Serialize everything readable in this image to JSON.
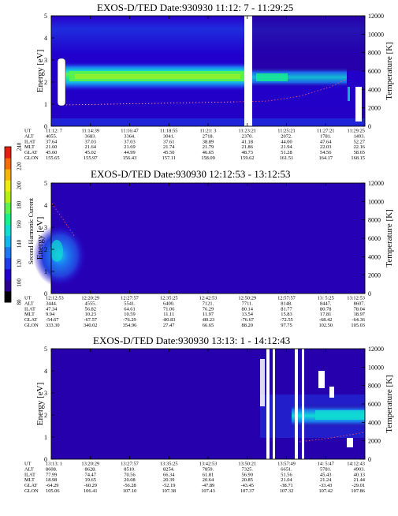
{
  "colors": {
    "scale": [
      "#000000",
      "#2a0090",
      "#2400c8",
      "#1e3ce6",
      "#1c78f0",
      "#14b4ee",
      "#10dcd2",
      "#18f08c",
      "#5cf24c",
      "#b4f014",
      "#ecec14",
      "#f8b40c",
      "#f46c08",
      "#e62010"
    ]
  },
  "colorbar": {
    "label": "Second Harmonic Current",
    "ticks": [
      "80",
      "100",
      "120",
      "140",
      "160",
      "180",
      "200",
      "220",
      "240"
    ]
  },
  "chart_data": [
    {
      "type": "heatmap",
      "title": "EXOS-D/TED   Date:930930  11:12: 7 - 11:29:25",
      "ylabel": "Energy [eV]",
      "ylabel_right": "Temperature [K]",
      "ylim": [
        0,
        5
      ],
      "y_ticks": [
        "0",
        "1",
        "2",
        "3",
        "4",
        "5"
      ],
      "ylim_right": [
        0,
        12000
      ],
      "y_ticks_right": [
        "0",
        "2000",
        "4000",
        "6000",
        "8000",
        "10000",
        "12000"
      ],
      "row_labels": [
        "UT",
        "ALT",
        "ILAT",
        "MLT",
        "GLAT",
        "GLON"
      ],
      "columns": [
        [
          "11:12: 7",
          "4055.",
          "37.64",
          "21.60",
          "45.60",
          "155.65"
        ],
        [
          "11:14:39",
          "3683.",
          "37.03",
          "21.64",
          "45.02",
          "155.97"
        ],
        [
          "11:16:47",
          "3364.",
          "37.03",
          "21.69",
          "44.99",
          "156.43"
        ],
        [
          "11:18:55",
          "3041.",
          "37.61",
          "21.74",
          "45.50",
          "157.11"
        ],
        [
          "11:21: 3",
          "2718.",
          "38.89",
          "21.79",
          "46.65",
          "158.09"
        ],
        [
          "11:23:21",
          "2370.",
          "41.18",
          "21.86",
          "48.73",
          "159.62"
        ],
        [
          "11:25:21",
          "2072.",
          "44.00",
          "21.94",
          "51.28",
          "161.51"
        ],
        [
          "11:27:21",
          "1781.",
          "47.64",
          "22.03",
          "54.56",
          "164.17"
        ],
        [
          "11:29:25",
          "1493.",
          "52.27",
          "22.16",
          "58.65",
          "168.15"
        ]
      ]
    },
    {
      "type": "heatmap",
      "title": "EXOS-D/TED   Date:930930  12:12:53 - 13:12:53",
      "ylabel": "Energy [eV]",
      "ylabel_right": "Temperature [K]",
      "ylim": [
        0,
        5
      ],
      "y_ticks": [
        "0",
        "1",
        "2",
        "3",
        "4",
        "5"
      ],
      "ylim_right": [
        0,
        12000
      ],
      "y_ticks_right": [
        "0",
        "2000",
        "4000",
        "6000",
        "8000",
        "10000",
        "12000"
      ],
      "row_labels": [
        "UT",
        "ALT",
        "ILAT",
        "MLT",
        "GLAT",
        "GLON"
      ],
      "columns": [
        [
          "12:12:53",
          "3444.",
          "47.34",
          "9.94",
          "-54.67",
          "333.30"
        ],
        [
          "12:20:29",
          "4555.",
          "56.82",
          "10.23",
          "-67.57",
          "340.02"
        ],
        [
          "12:27:57",
          "5541.",
          "64.61",
          "10.59",
          "-76.29",
          "354.96"
        ],
        [
          "12:35:25",
          "6400.",
          "71.06",
          "11.11",
          "-80.83",
          "27.47"
        ],
        [
          "12:42:53",
          "7121.",
          "76.29",
          "11.97",
          "-80.23",
          "66.65"
        ],
        [
          "12:50:29",
          "7711.",
          "80.14",
          "13.54",
          "-76.67",
          "88.20"
        ],
        [
          "12:57:57",
          "8148.",
          "81.77",
          "15.83",
          "-72.55",
          "97.75"
        ],
        [
          "13: 5:25",
          "8447.",
          "80.78",
          "17.81",
          "-68.42",
          "102.50"
        ],
        [
          "13:12:53",
          "8607.",
          "78.04",
          "18.97",
          "-64.36",
          "105.03"
        ]
      ]
    },
    {
      "type": "heatmap",
      "title": "EXOS-D/TED   Date:930930  13:13: 1 - 14:12:43",
      "ylabel": "Energy [eV]",
      "ylabel_right": "Temperature [K]",
      "ylim": [
        0,
        5
      ],
      "y_ticks": [
        "0",
        "1",
        "2",
        "3",
        "4",
        "5"
      ],
      "ylim_right": [
        0,
        12000
      ],
      "y_ticks_right": [
        "0",
        "2000",
        "4000",
        "6000",
        "8000",
        "10000",
        "12000"
      ],
      "row_labels": [
        "UT",
        "ALT",
        "ILAT",
        "MLT",
        "GLAT",
        "GLON"
      ],
      "columns": [
        [
          "13:13: 1",
          "8608.",
          "77.99",
          "18.98",
          "-64.29",
          "105.06"
        ],
        [
          "13:20:29",
          "8628.",
          "74.47",
          "19.65",
          "-60.29",
          "106.41"
        ],
        [
          "13:27:57",
          "8510.",
          "70.56",
          "20.08",
          "-56.28",
          "107.10"
        ],
        [
          "13:35:25",
          "8254.",
          "66.34",
          "20.39",
          "-52.19",
          "107.38"
        ],
        [
          "13:42:53",
          "7859.",
          "61.81",
          "20.64",
          "-47.89",
          "107.43"
        ],
        [
          "13:50:21",
          "7325.",
          "56.90",
          "20.85",
          "-43.45",
          "107.37"
        ],
        [
          "13:57:49",
          "6651.",
          "51.56",
          "21.04",
          "-38.71",
          "107.32"
        ],
        [
          "14: 5:47",
          "5781.",
          "45.43",
          "21.24",
          "-33.43",
          "107.42"
        ],
        [
          "14:12:43",
          "4903.",
          "40.13",
          "21.44",
          "-29.01",
          "107.86"
        ]
      ]
    }
  ]
}
